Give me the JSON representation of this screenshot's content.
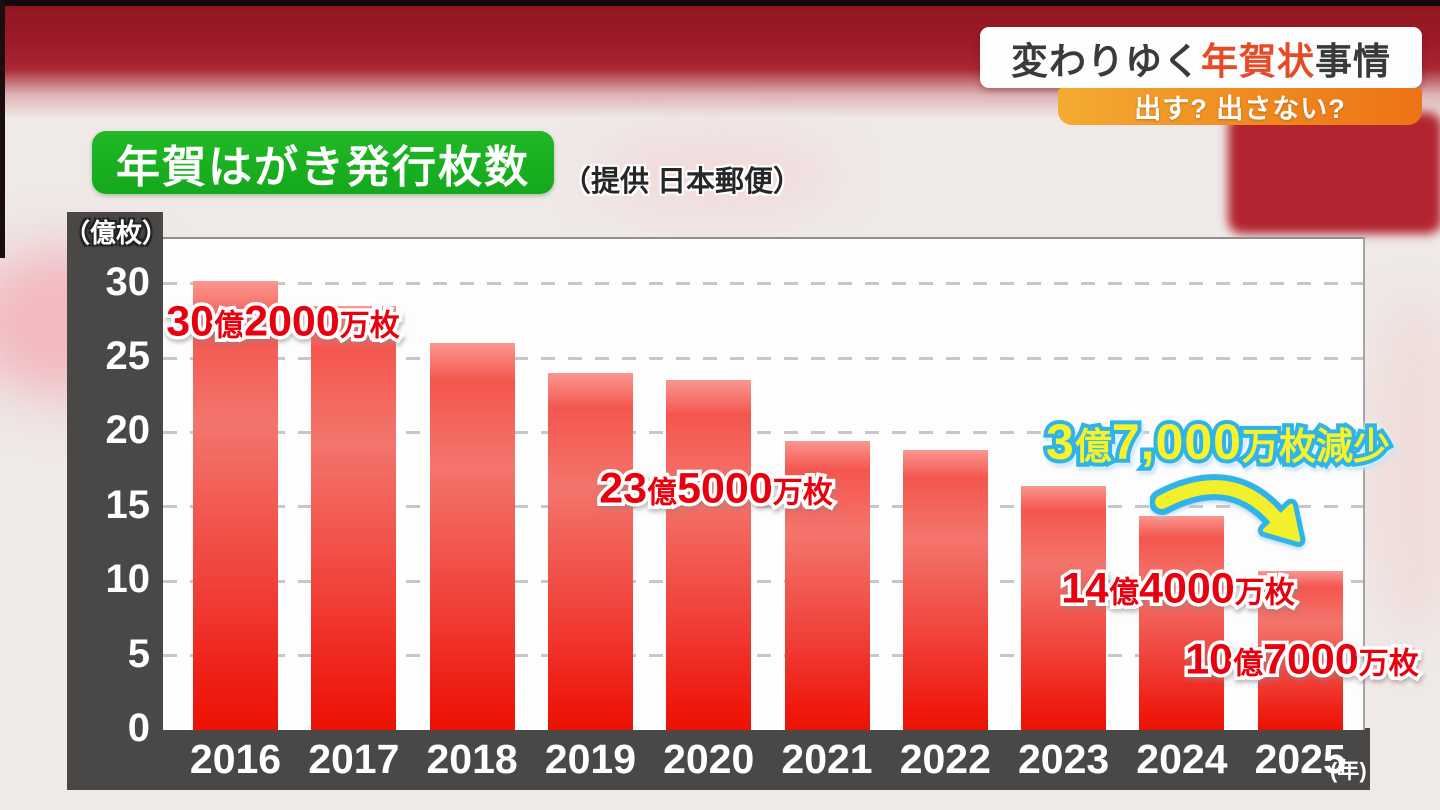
{
  "program": {
    "title_prefix": "変わりゆく",
    "title_highlight": "年賀状",
    "title_suffix": "事情",
    "subtitle": "出す? 出さない?"
  },
  "chart_header": {
    "title": "年賀はがき発行枚数",
    "source": "（提供 日本郵便）"
  },
  "chart_data": {
    "type": "bar",
    "title": "年賀はがき発行枚数",
    "source": "提供 日本郵便",
    "categories": [
      "2016",
      "2017",
      "2018",
      "2019",
      "2020",
      "2021",
      "2022",
      "2023",
      "2024",
      "2025"
    ],
    "values": [
      30.2,
      28.5,
      26.0,
      24.0,
      23.5,
      19.4,
      18.8,
      16.4,
      14.4,
      10.7
    ],
    "unit": "億枚",
    "ylabel": "（億枚）",
    "x_axis_unit": "(年)",
    "ylim": [
      0,
      33
    ],
    "yticks": [
      0,
      5,
      10,
      15,
      20,
      25,
      30
    ],
    "grid": "horizontal-dashed",
    "legend": "none",
    "bar_color": "#f3564c",
    "annotations": [
      {
        "target": "2016",
        "text": "30億2000万枚"
      },
      {
        "target": "2020",
        "text": "23億5000万枚"
      },
      {
        "target": "2024",
        "text": "14億4000万枚"
      },
      {
        "target": "2025",
        "text": "10億7000万枚"
      },
      {
        "target": "2024→2025",
        "text": "3億7,000万枚減少"
      }
    ]
  },
  "labels": {
    "y2016": {
      "num1": "30",
      "unit1": "億",
      "num2": "2000",
      "unit2": "万枚"
    },
    "y2020": {
      "num1": "23",
      "unit1": "億",
      "num2": "5000",
      "unit2": "万枚"
    },
    "y2024": {
      "num1": "14",
      "unit1": "億",
      "num2": "4000",
      "unit2": "万枚"
    },
    "y2025": {
      "num1": "10",
      "unit1": "億",
      "num2": "7000",
      "unit2": "万枚"
    },
    "decrease": {
      "num1": "3",
      "unit1": "億",
      "num2": "7,000",
      "unit2": "万枚減少"
    }
  },
  "colors": {
    "top_band": "#9e1b29",
    "axis_panel": "#494846",
    "bar_red": "#f3564c",
    "annotation_red": "#e8000f",
    "decrease_yellow": "#f6f32b",
    "decrease_outline_cyan": "#2fb3e8",
    "title_green": "#18ad20",
    "badge_orange": "#ef8a20",
    "highlight_red": "#e64b28"
  }
}
